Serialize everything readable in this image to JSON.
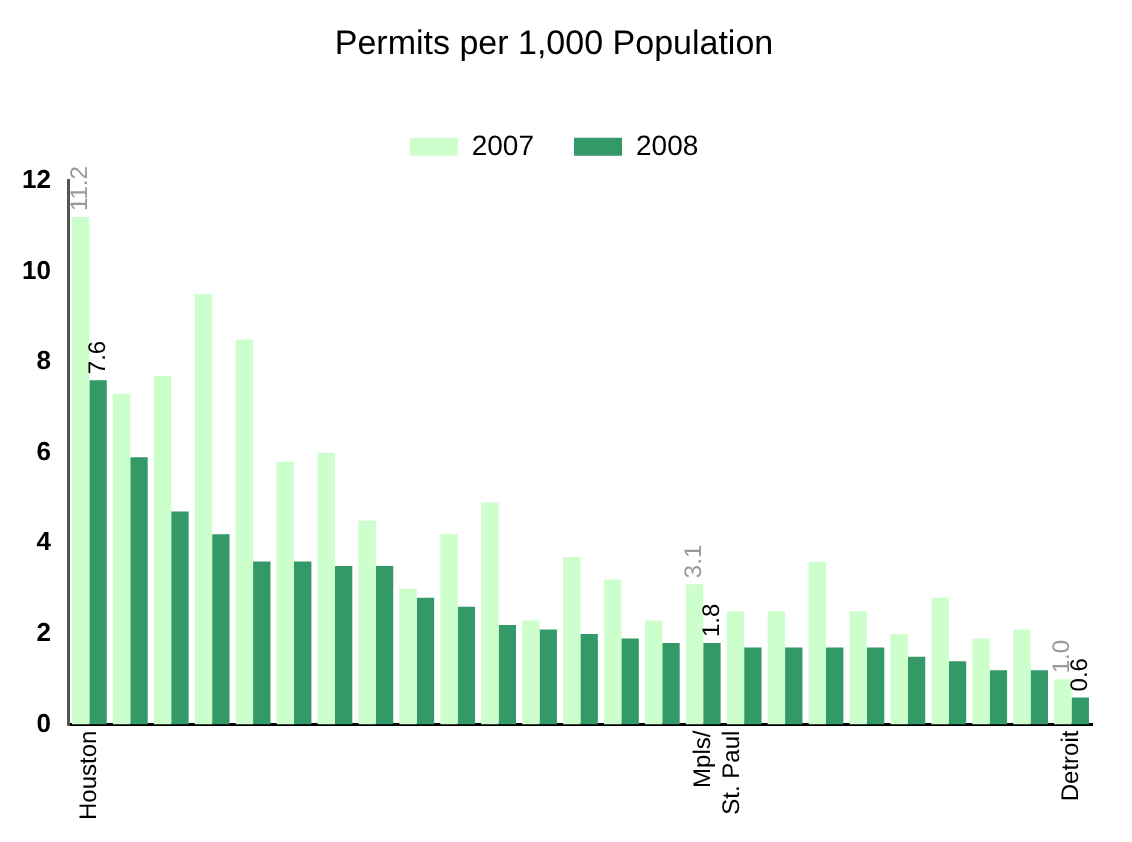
{
  "chart_data": {
    "type": "bar",
    "title": "Permits per 1,000 Population",
    "categories": [
      "Houston",
      null,
      null,
      null,
      null,
      null,
      null,
      null,
      null,
      null,
      null,
      null,
      null,
      null,
      null,
      "Mpls/\nSt. Paul",
      null,
      null,
      null,
      null,
      null,
      null,
      null,
      null,
      "Detroit"
    ],
    "series": [
      {
        "name": "2007",
        "color": "#ccffcc",
        "values": [
          11.2,
          7.3,
          7.7,
          9.5,
          8.5,
          5.8,
          6.0,
          4.5,
          3.0,
          4.2,
          4.9,
          2.3,
          3.7,
          3.2,
          2.3,
          3.1,
          2.5,
          2.5,
          3.6,
          2.5,
          2.0,
          2.8,
          1.9,
          2.1,
          1.0
        ],
        "value_labels": [
          "11.2",
          null,
          null,
          null,
          null,
          null,
          null,
          null,
          null,
          null,
          null,
          null,
          null,
          null,
          null,
          "3.1",
          null,
          null,
          null,
          null,
          null,
          null,
          null,
          null,
          "1.0"
        ]
      },
      {
        "name": "2008",
        "color": "#339966",
        "values": [
          7.6,
          5.9,
          4.7,
          4.2,
          3.6,
          3.6,
          3.5,
          3.5,
          2.8,
          2.6,
          2.2,
          2.1,
          2.0,
          1.9,
          1.8,
          1.8,
          1.7,
          1.7,
          1.7,
          1.7,
          1.5,
          1.4,
          1.2,
          1.2,
          0.6
        ],
        "value_labels": [
          "7.6",
          null,
          null,
          null,
          null,
          null,
          null,
          null,
          null,
          null,
          null,
          null,
          null,
          null,
          null,
          "1.8",
          null,
          null,
          null,
          null,
          null,
          null,
          null,
          null,
          "0.6"
        ]
      }
    ],
    "ylim": [
      0,
      12
    ],
    "yticks": [
      0,
      2,
      4,
      6,
      8,
      10,
      12
    ],
    "grid": false,
    "legend": "top"
  }
}
